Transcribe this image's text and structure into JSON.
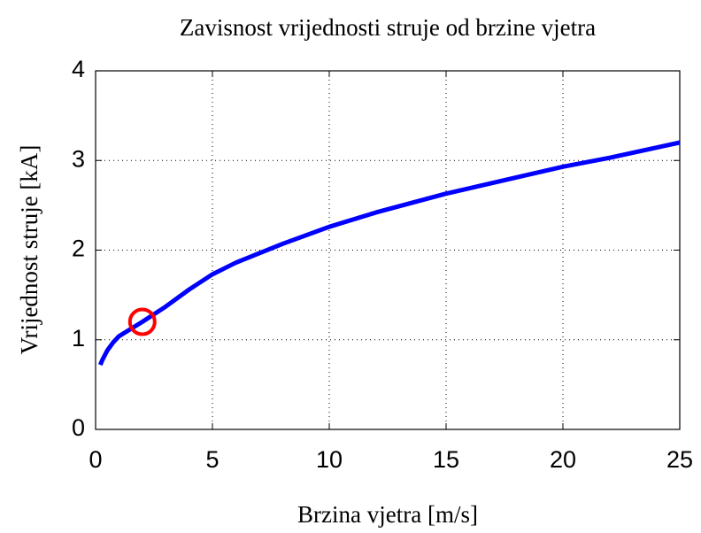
{
  "chart_data": {
    "type": "line",
    "title": "Zavisnost vrijednosti struje od brzine vjetra",
    "xlabel": "Brzina vjetra [m/s]",
    "ylabel": "Vrijednost struje [kA]",
    "series": [
      {
        "color": "#0000ff",
        "marker": "none",
        "x": [
          0.2,
          0.3,
          0.5,
          0.75,
          1,
          1.5,
          2,
          3,
          4,
          5,
          6,
          8,
          10,
          12,
          15,
          18,
          20,
          22,
          25
        ],
        "values": [
          0.72,
          0.78,
          0.88,
          0.97,
          1.04,
          1.12,
          1.2,
          1.37,
          1.56,
          1.73,
          1.86,
          2.07,
          2.26,
          2.42,
          2.63,
          2.81,
          2.93,
          3.03,
          3.2
        ]
      },
      {
        "color": "#ff0000",
        "marker": "circle",
        "x": [
          2
        ],
        "values": [
          1.2
        ]
      }
    ],
    "xlim": [
      0,
      25
    ],
    "xticks": [
      0,
      5,
      10,
      15,
      20,
      25
    ],
    "ylim": [
      0,
      4
    ],
    "yticks": [
      0,
      1,
      2,
      3,
      4
    ],
    "grid": true
  }
}
